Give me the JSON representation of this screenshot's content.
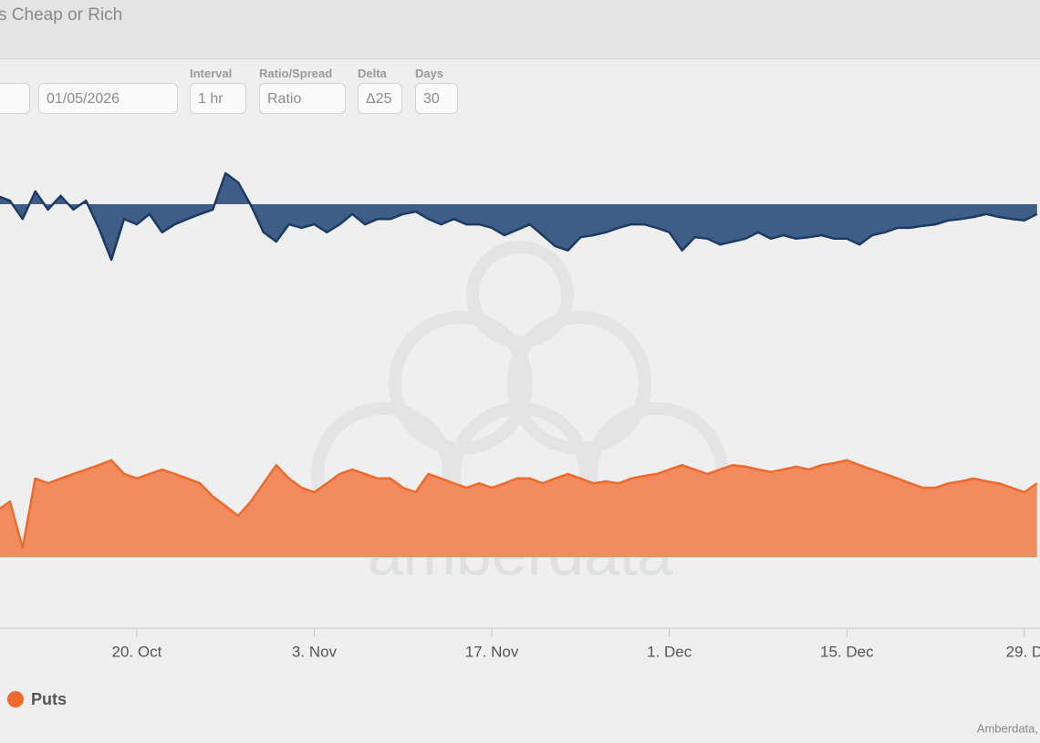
{
  "header": {
    "title": "s Cheap or Rich"
  },
  "controls": [
    {
      "value": "01/05/2026"
    },
    {
      "label": "Interval",
      "value": "1 hr"
    },
    {
      "label": "Ratio/Spread",
      "value": "Ratio"
    },
    {
      "label": "Delta",
      "value": "Δ25"
    },
    {
      "label": "Days",
      "value": "30"
    }
  ],
  "chart_data": {
    "type": "area",
    "watermark": "amberdata",
    "credits": "Amberdata,",
    "categories": [
      null,
      null,
      null,
      null,
      null,
      null,
      null,
      null,
      null,
      null,
      null,
      "20. Oct",
      null,
      null,
      null,
      null,
      null,
      null,
      null,
      null,
      null,
      null,
      null,
      null,
      null,
      "3. Nov",
      null,
      null,
      null,
      null,
      null,
      null,
      null,
      null,
      null,
      null,
      null,
      null,
      null,
      "17. Nov",
      null,
      null,
      null,
      null,
      null,
      null,
      null,
      null,
      null,
      null,
      null,
      null,
      null,
      "1. Dec",
      null,
      null,
      null,
      null,
      null,
      null,
      null,
      null,
      null,
      null,
      null,
      null,
      null,
      "15. Dec",
      null,
      null,
      null,
      null,
      null,
      null,
      null,
      null,
      null,
      null,
      null,
      null,
      null,
      "29. D",
      null
    ],
    "ylim": [
      0,
      100
    ],
    "series": [
      {
        "color": "#1d3a64",
        "fill": "#3e5e88",
        "threshold": 86.3,
        "values": [
          88.0,
          87.0,
          83.3,
          88.9,
          85.2,
          88.0,
          85.2,
          87.0,
          81.5,
          75.0,
          83.3,
          82.2,
          84.3,
          80.6,
          82.2,
          83.3,
          84.3,
          85.2,
          92.6,
          90.7,
          86.1,
          80.6,
          78.7,
          82.2,
          81.5,
          82.2,
          80.6,
          82.2,
          84.3,
          82.2,
          83.3,
          83.3,
          84.3,
          84.8,
          83.3,
          82.2,
          83.3,
          82.2,
          82.2,
          81.5,
          80.0,
          81.1,
          82.2,
          80.0,
          77.8,
          76.9,
          79.6,
          80.0,
          80.6,
          81.5,
          82.2,
          82.2,
          81.5,
          80.6,
          76.9,
          79.6,
          79.3,
          78.1,
          78.7,
          79.3,
          80.6,
          79.3,
          80.0,
          79.3,
          79.6,
          80.0,
          79.3,
          79.3,
          78.1,
          80.0,
          80.6,
          81.5,
          81.5,
          81.9,
          82.2,
          83.0,
          83.3,
          83.7,
          84.3,
          83.7,
          83.3,
          83.0,
          84.3
        ]
      },
      {
        "name": "Puts",
        "color": "#ee6a2c",
        "fill": "#f28b5e",
        "threshold": 14.6,
        "values": [
          24.1,
          25.9,
          16.5,
          30.6,
          29.6,
          30.6,
          31.5,
          32.4,
          33.3,
          34.3,
          31.5,
          30.6,
          31.5,
          32.4,
          31.5,
          30.6,
          29.6,
          26.9,
          25.0,
          23.0,
          25.9,
          29.6,
          33.3,
          30.6,
          28.7,
          27.8,
          29.6,
          31.5,
          32.4,
          31.5,
          30.6,
          30.6,
          28.7,
          27.8,
          31.5,
          30.6,
          29.6,
          28.7,
          29.6,
          28.7,
          29.6,
          30.6,
          30.6,
          29.6,
          30.6,
          31.5,
          30.6,
          29.6,
          30.0,
          29.6,
          30.6,
          31.1,
          31.5,
          32.4,
          33.3,
          32.4,
          31.5,
          32.4,
          33.3,
          33.0,
          32.4,
          31.9,
          32.4,
          33.0,
          32.4,
          33.3,
          33.7,
          34.3,
          33.3,
          32.4,
          31.5,
          30.6,
          29.6,
          28.7,
          28.7,
          29.6,
          30.0,
          30.6,
          30.0,
          29.6,
          28.7,
          27.8,
          29.6
        ]
      }
    ]
  }
}
